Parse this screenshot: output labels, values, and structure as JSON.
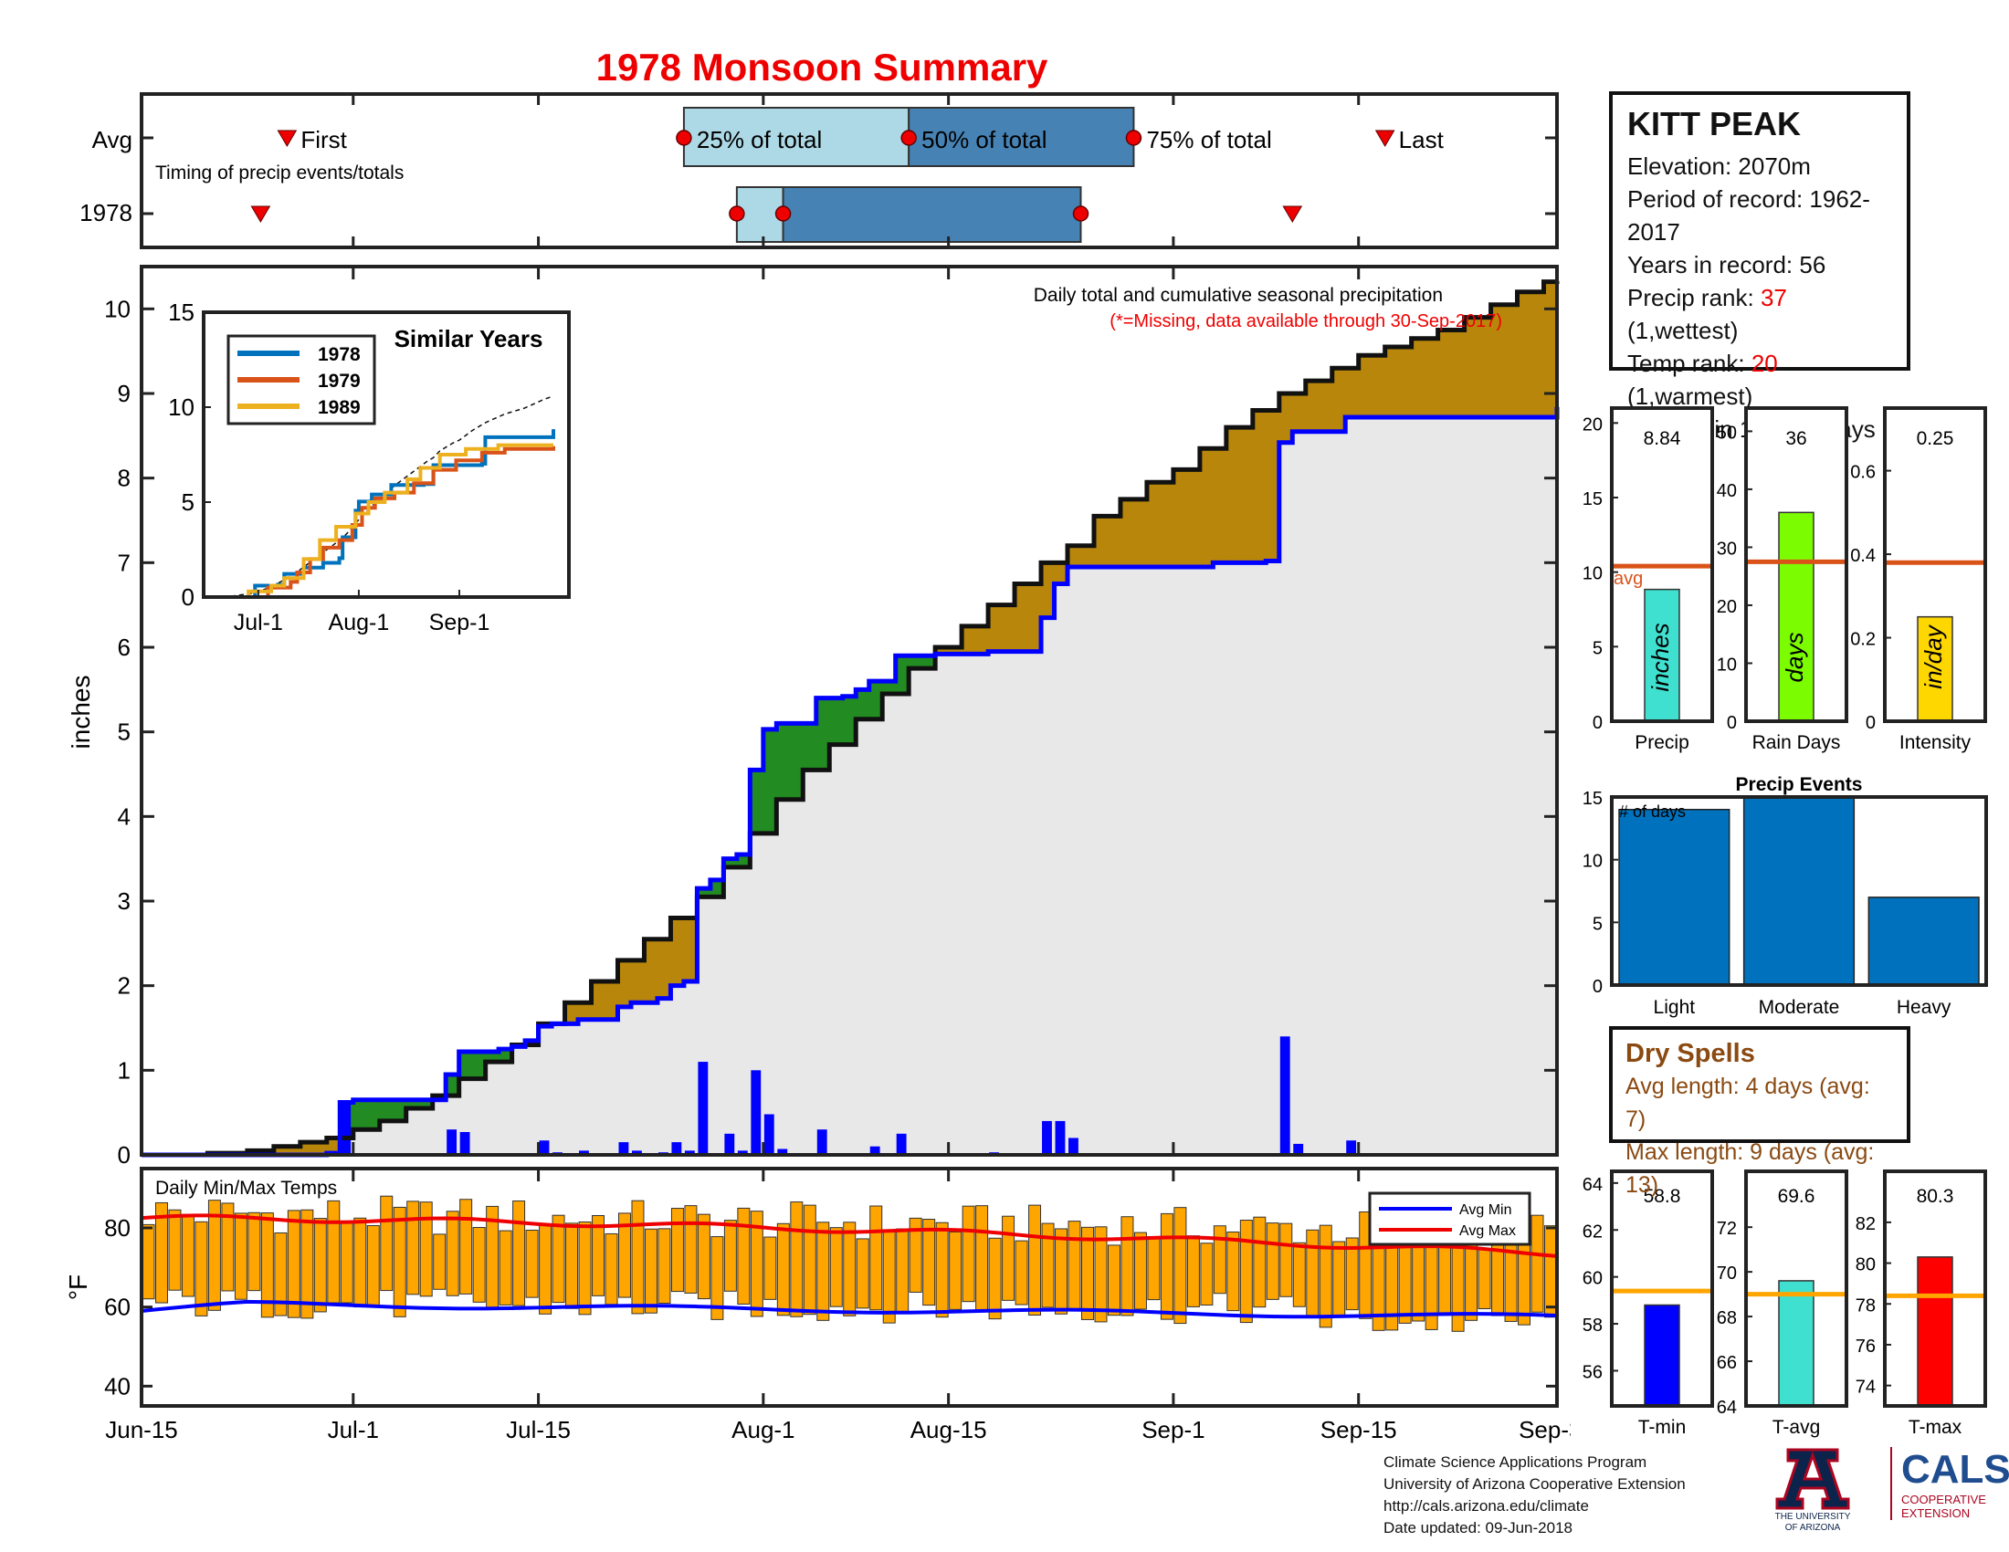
{
  "title": "1978 Monsoon Summary",
  "station": {
    "name": "KITT PEAK",
    "elevation": "Elevation: 2070m",
    "period": "Period of record: 1962-2017",
    "years": "Years in record: 56",
    "precip_rank_label": "Precip rank: ",
    "precip_rank_value": "37",
    "precip_rank_suffix": " (1,wettest)",
    "temp_rank_label": "Temp rank: ",
    "temp_rank_value": "20",
    "temp_rank_suffix": " (1,warmest)",
    "missing": "Missing in 1978: 0 days"
  },
  "timing": {
    "row_labels": [
      "Avg",
      "1978"
    ],
    "note": "Timing of precip events/totals",
    "first_label": "First",
    "last_label": "Last",
    "q25_label": "25% of total",
    "q50_label": "50% of total",
    "q75_label": "75% of total",
    "avg": {
      "first": 11,
      "q25": 41,
      "q50": 58,
      "q75": 75,
      "last": 94
    },
    "year": {
      "first": 9,
      "q25": 45,
      "q50": 48.5,
      "q75": 71,
      "last": 87
    }
  },
  "main": {
    "subtitle": "Daily total and cumulative seasonal precipitation",
    "missing_note": "(*=Missing, data available through 30-Sep-2017)",
    "ylabel": "inches",
    "yticks": [
      "0",
      "1",
      "2",
      "3",
      "4",
      "5",
      "6",
      "7",
      "8",
      "9",
      "10"
    ],
    "xticks": [
      "Jun-15",
      "Jul-1",
      "Jul-15",
      "Aug-1",
      "Aug-15",
      "Sep-1",
      "Sep-15",
      "Sep-30"
    ],
    "xtick_days": [
      0,
      16,
      30,
      47,
      61,
      78,
      92,
      107
    ]
  },
  "chart_data": {
    "type": "area",
    "title": "1978 Monsoon Summary",
    "ylabel": "inches",
    "ylim": [
      0,
      10.5
    ],
    "cumulative_1978": [
      [
        0,
        0
      ],
      [
        14,
        0.02
      ],
      [
        15,
        0.62
      ],
      [
        16,
        0.65
      ],
      [
        22,
        0.65
      ],
      [
        23,
        0.95
      ],
      [
        24,
        1.22
      ],
      [
        26,
        1.22
      ],
      [
        27,
        1.25
      ],
      [
        28,
        1.28
      ],
      [
        29,
        1.35
      ],
      [
        30,
        1.52
      ],
      [
        31,
        1.55
      ],
      [
        32,
        1.55
      ],
      [
        33,
        1.6
      ],
      [
        34,
        1.6
      ],
      [
        36,
        1.75
      ],
      [
        37,
        1.8
      ],
      [
        38,
        1.8
      ],
      [
        39,
        1.85
      ],
      [
        40,
        2.0
      ],
      [
        41,
        2.05
      ],
      [
        42,
        3.15
      ],
      [
        43,
        3.25
      ],
      [
        44,
        3.5
      ],
      [
        45,
        3.55
      ],
      [
        46,
        4.55
      ],
      [
        47,
        5.03
      ],
      [
        48,
        5.1
      ],
      [
        50,
        5.1
      ],
      [
        51,
        5.4
      ],
      [
        53,
        5.42
      ],
      [
        54,
        5.5
      ],
      [
        55,
        5.6
      ],
      [
        56,
        5.6
      ],
      [
        57,
        5.9
      ],
      [
        58,
        5.9
      ],
      [
        60,
        5.92
      ],
      [
        61,
        5.92
      ],
      [
        64,
        5.95
      ],
      [
        67,
        5.95
      ],
      [
        68,
        6.35
      ],
      [
        69,
        6.75
      ],
      [
        70,
        6.95
      ],
      [
        78,
        6.95
      ],
      [
        81,
        7.0
      ],
      [
        85,
        7.02
      ],
      [
        86,
        8.42
      ],
      [
        87,
        8.55
      ],
      [
        90,
        8.55
      ],
      [
        91,
        8.72
      ],
      [
        107,
        8.84
      ]
    ],
    "cumulative_avg": [
      [
        0,
        0
      ],
      [
        5,
        0.02
      ],
      [
        8,
        0.05
      ],
      [
        10,
        0.1
      ],
      [
        12,
        0.15
      ],
      [
        14,
        0.2
      ],
      [
        16,
        0.3
      ],
      [
        18,
        0.4
      ],
      [
        20,
        0.55
      ],
      [
        22,
        0.7
      ],
      [
        24,
        0.9
      ],
      [
        26,
        1.1
      ],
      [
        28,
        1.3
      ],
      [
        30,
        1.55
      ],
      [
        32,
        1.8
      ],
      [
        34,
        2.05
      ],
      [
        36,
        2.3
      ],
      [
        38,
        2.55
      ],
      [
        40,
        2.8
      ],
      [
        42,
        3.05
      ],
      [
        44,
        3.4
      ],
      [
        46,
        3.8
      ],
      [
        48,
        4.2
      ],
      [
        50,
        4.55
      ],
      [
        52,
        4.85
      ],
      [
        54,
        5.15
      ],
      [
        56,
        5.45
      ],
      [
        58,
        5.75
      ],
      [
        60,
        6.0
      ],
      [
        62,
        6.25
      ],
      [
        64,
        6.5
      ],
      [
        66,
        6.75
      ],
      [
        68,
        7.0
      ],
      [
        70,
        7.2
      ],
      [
        72,
        7.55
      ],
      [
        74,
        7.75
      ],
      [
        76,
        7.95
      ],
      [
        78,
        8.1
      ],
      [
        80,
        8.35
      ],
      [
        82,
        8.6
      ],
      [
        84,
        8.8
      ],
      [
        86,
        9.0
      ],
      [
        88,
        9.15
      ],
      [
        90,
        9.3
      ],
      [
        92,
        9.45
      ],
      [
        94,
        9.55
      ],
      [
        96,
        9.65
      ],
      [
        98,
        9.75
      ],
      [
        100,
        9.9
      ],
      [
        102,
        10.05
      ],
      [
        104,
        10.2
      ],
      [
        106,
        10.32
      ],
      [
        107,
        10.33
      ]
    ],
    "daily_1978": [
      [
        15,
        0.6
      ],
      [
        23,
        0.3
      ],
      [
        24,
        0.27
      ],
      [
        30,
        0.17
      ],
      [
        31,
        0.03
      ],
      [
        33,
        0.05
      ],
      [
        36,
        0.15
      ],
      [
        37,
        0.05
      ],
      [
        39,
        0.03
      ],
      [
        40,
        0.15
      ],
      [
        41,
        0.05
      ],
      [
        42,
        1.1
      ],
      [
        44,
        0.25
      ],
      [
        45,
        0.05
      ],
      [
        46,
        1.0
      ],
      [
        47,
        0.48
      ],
      [
        48,
        0.07
      ],
      [
        51,
        0.3
      ],
      [
        54,
        0.02
      ],
      [
        55,
        0.1
      ],
      [
        57,
        0.25
      ],
      [
        61,
        0.02
      ],
      [
        64,
        0.03
      ],
      [
        68,
        0.4
      ],
      [
        69,
        0.4
      ],
      [
        70,
        0.2
      ],
      [
        80,
        0.02
      ],
      [
        81,
        0.02
      ],
      [
        86,
        1.4
      ],
      [
        87,
        0.13
      ],
      [
        91,
        0.17
      ]
    ]
  },
  "similar": {
    "title": "Similar Years",
    "legend": [
      "1978",
      "1979",
      "1989"
    ],
    "colors": [
      "#0072bd",
      "#d95319",
      "#edb120"
    ],
    "yticks": [
      "0",
      "5",
      "10",
      "15"
    ],
    "xticks": [
      "Jul-1",
      "Aug-1",
      "Sep-1"
    ],
    "series_1978": [
      [
        0,
        0
      ],
      [
        14,
        0
      ],
      [
        15,
        0.6
      ],
      [
        22,
        0.65
      ],
      [
        24,
        1.22
      ],
      [
        30,
        1.55
      ],
      [
        36,
        1.8
      ],
      [
        41,
        2.05
      ],
      [
        42,
        3.15
      ],
      [
        46,
        4.55
      ],
      [
        47,
        5.03
      ],
      [
        51,
        5.4
      ],
      [
        57,
        5.9
      ],
      [
        67,
        5.95
      ],
      [
        70,
        6.95
      ],
      [
        85,
        7.02
      ],
      [
        86,
        8.42
      ],
      [
        107,
        8.84
      ]
    ],
    "series_1979": [
      [
        0,
        0
      ],
      [
        18,
        0
      ],
      [
        19,
        0.5
      ],
      [
        26,
        0.8
      ],
      [
        28,
        1.3
      ],
      [
        32,
        2.0
      ],
      [
        36,
        2.6
      ],
      [
        41,
        3.0
      ],
      [
        45,
        3.8
      ],
      [
        48,
        4.7
      ],
      [
        52,
        5.2
      ],
      [
        58,
        5.5
      ],
      [
        64,
        6.0
      ],
      [
        70,
        6.7
      ],
      [
        77,
        7.2
      ],
      [
        85,
        7.6
      ],
      [
        92,
        7.8
      ],
      [
        107,
        7.95
      ]
    ],
    "series_1989": [
      [
        0,
        0
      ],
      [
        12,
        0
      ],
      [
        13,
        0.3
      ],
      [
        20,
        0.6
      ],
      [
        24,
        1.0
      ],
      [
        30,
        2.0
      ],
      [
        35,
        3.0
      ],
      [
        40,
        3.7
      ],
      [
        46,
        4.4
      ],
      [
        50,
        5.0
      ],
      [
        55,
        5.5
      ],
      [
        62,
        6.2
      ],
      [
        66,
        6.8
      ],
      [
        72,
        7.5
      ],
      [
        80,
        7.8
      ],
      [
        90,
        8.0
      ],
      [
        107,
        8.0
      ]
    ]
  },
  "bars": [
    {
      "label": "Precip",
      "value": "8.84",
      "unit": "inches",
      "color": "#40e0d0",
      "v": 8.84,
      "avg": 10.4,
      "ymax": 21,
      "avg_label": "avg",
      "ticks": [
        "0",
        "5",
        "10",
        "15",
        "20"
      ],
      "tickvals": [
        0,
        5,
        10,
        15,
        20
      ]
    },
    {
      "label": "Rain Days",
      "value": "36",
      "unit": "days",
      "color": "#7cfc00",
      "v": 36,
      "avg": 27.5,
      "ymax": 54,
      "ticks": [
        "0",
        "10",
        "20",
        "30",
        "40",
        "50"
      ],
      "tickvals": [
        0,
        10,
        20,
        30,
        40,
        50
      ]
    },
    {
      "label": "Intensity",
      "value": "0.25",
      "unit": "in/day",
      "color": "#ffd700",
      "v": 0.25,
      "avg": 0.38,
      "ymax": 0.75,
      "ticks": [
        "0",
        "0.2",
        "0.4",
        "0.6"
      ],
      "tickvals": [
        0,
        0.2,
        0.4,
        0.6
      ]
    }
  ],
  "events": {
    "title": "Precip Events",
    "ylabel_inner": "# of days",
    "categories": [
      "Light",
      "Moderate",
      "Heavy"
    ],
    "values": [
      14,
      15,
      7
    ],
    "yticks": [
      "0",
      "5",
      "10",
      "15"
    ]
  },
  "dry": {
    "title": "Dry Spells",
    "avg_line": "Avg length: 4 days (avg: 7)",
    "max_line": "Max length: 9 days (avg: 13)"
  },
  "temps": {
    "label": "Daily Min/Max Temps",
    "ylabel": "°F",
    "yticks": [
      "40",
      "60",
      "80"
    ],
    "legend": [
      "Avg Min",
      "Avg Max"
    ],
    "ylim": [
      35,
      95
    ]
  },
  "tbars": [
    {
      "label": "T-min",
      "value": "58.8",
      "color": "#0000ff",
      "v": 58.8,
      "avg": 59.4,
      "ymin": 54.5,
      "ymax": 64.5,
      "ticks": [
        "56",
        "58",
        "60",
        "62",
        "64"
      ],
      "tickvals": [
        56,
        58,
        60,
        62,
        64
      ]
    },
    {
      "label": "T-avg",
      "value": "69.6",
      "color": "#40e0d0",
      "v": 69.6,
      "avg": 69.0,
      "ymin": 64,
      "ymax": 74.5,
      "ticks": [
        "64",
        "66",
        "68",
        "70",
        "72"
      ],
      "tickvals": [
        64,
        66,
        68,
        70,
        72
      ]
    },
    {
      "label": "T-max",
      "value": "80.3",
      "color": "#ff0000",
      "v": 80.3,
      "avg": 78.4,
      "ymin": 73,
      "ymax": 84.5,
      "ticks": [
        "74",
        "76",
        "78",
        "80",
        "82"
      ],
      "tickvals": [
        74,
        76,
        78,
        80,
        82
      ]
    }
  ],
  "footer": {
    "line1": "Climate Science Applications Program",
    "line2": "University of Arizona Cooperative Extension",
    "line3": "http://cals.arizona.edu/climate",
    "line4": " Date updated: 09-Jun-2018"
  },
  "logos": {
    "ua_line1": "THE UNIVERSITY",
    "ua_line2": "OF ARIZONA",
    "cals": "CALS",
    "cals_line1": "COOPERATIVE",
    "cals_line2": "EXTENSION"
  }
}
